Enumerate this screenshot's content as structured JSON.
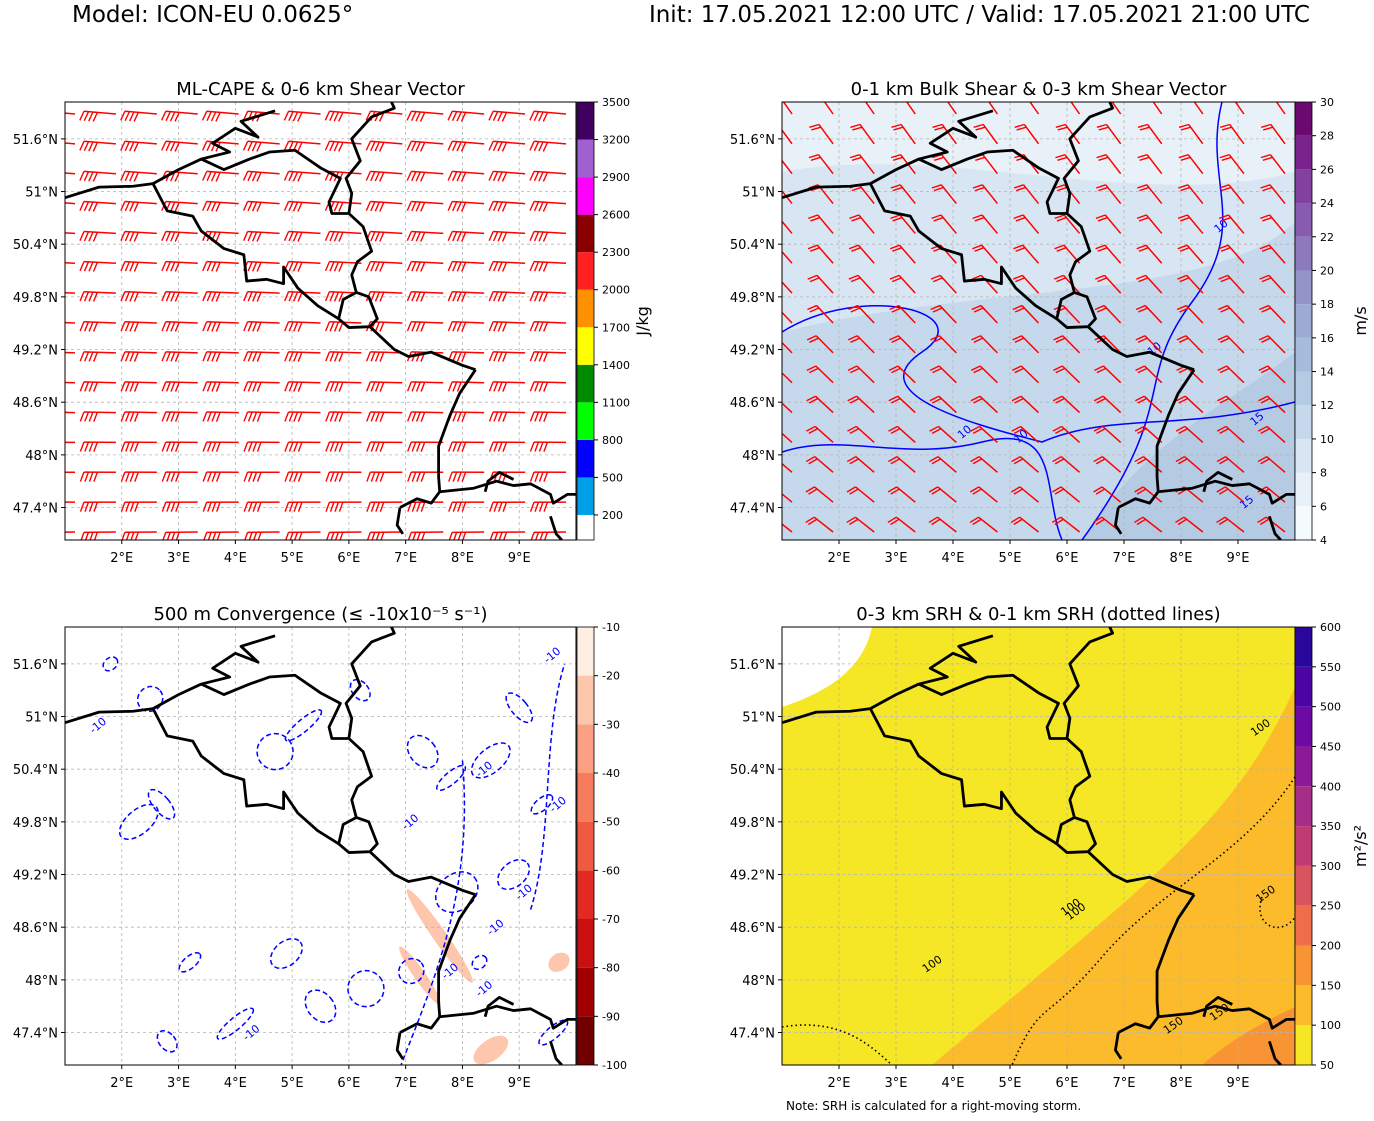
{
  "header": {
    "model": "Model: ICON-EU 0.0625°",
    "time": "Init: 17.05.2021 12:00 UTC / Valid: 17.05.2021 21:00 UTC"
  },
  "note": "Note: SRH is calculated for a right-moving storm.",
  "axes": {
    "lat_labels": [
      "51.6°N",
      "51°N",
      "50.4°N",
      "49.8°N",
      "49.2°N",
      "48.6°N",
      "48°N",
      "47.4°N"
    ],
    "lat_values": [
      51.6,
      51.0,
      50.4,
      49.8,
      49.2,
      48.6,
      48.0,
      47.4
    ],
    "lon_labels": [
      "2°E",
      "3°E",
      "4°E",
      "5°E",
      "6°E",
      "7°E",
      "8°E",
      "9°E"
    ],
    "lon_values": [
      2,
      3,
      4,
      5,
      6,
      7,
      8,
      9
    ],
    "lon_range": [
      1.0,
      10.0
    ],
    "lat_range": [
      47.03,
      52.02
    ],
    "grid": true
  },
  "panels": [
    {
      "id": "cape",
      "title": "ML-CAPE & 0-6 km Shear Vector",
      "unit": "J/kg",
      "colorbar": {
        "min": 0,
        "max": 3500,
        "ticks": [
          "200",
          "500",
          "800",
          "1100",
          "1400",
          "1700",
          "2000",
          "2300",
          "2600",
          "2900",
          "3200",
          "3500"
        ],
        "bounds": [
          0,
          200,
          500,
          800,
          1100,
          1400,
          1700,
          2000,
          2300,
          2600,
          2900,
          3200,
          3500
        ],
        "colors": [
          "#ffffff",
          "#00a0e8",
          "#0000ff",
          "#00ff00",
          "#008a00",
          "#ffff00",
          "#ff9000",
          "#ff2020",
          "#8a0000",
          "#ff00ff",
          "#a060d0",
          "#400060"
        ]
      },
      "barbs": {
        "color": "#ff0000",
        "style": "westerly-strong"
      }
    },
    {
      "id": "shear",
      "title": "0-1 km Bulk Shear & 0-3 km Shear Vector",
      "unit": "m/s",
      "colorbar": {
        "min": 4,
        "max": 30,
        "ticks": [
          "4",
          "6",
          "8",
          "10",
          "12",
          "14",
          "16",
          "18",
          "20",
          "22",
          "24",
          "26",
          "28",
          "30"
        ],
        "bounds": [
          4,
          6,
          8,
          10,
          12,
          14,
          16,
          18,
          20,
          22,
          24,
          26,
          28,
          30
        ],
        "colors": [
          "#f5fafd",
          "#e8f1f8",
          "#d7e6f2",
          "#c6d8eb",
          "#b5cae3",
          "#a7bbdb",
          "#9cabd3",
          "#9394c8",
          "#8c7abd",
          "#875cae",
          "#82409f",
          "#7a238d",
          "#6a0a70"
        ]
      },
      "contour_labels": [
        "10",
        "15"
      ],
      "contour_color": "#0000ff",
      "barbs": {
        "color": "#ff0000",
        "style": "southwesterly"
      }
    },
    {
      "id": "conv",
      "title": "500 m Convergence (≤ -10x10⁻⁵ s⁻¹)",
      "unit": "",
      "colorbar": {
        "min": -100,
        "max": -10,
        "ticks": [
          "-10",
          "-20",
          "-30",
          "-40",
          "-50",
          "-60",
          "-70",
          "-80",
          "-90",
          "-100"
        ],
        "bounds": [
          -100,
          -90,
          -80,
          -70,
          -60,
          -50,
          -40,
          -30,
          -20,
          -10
        ],
        "colors": [
          "#700000",
          "#a00000",
          "#c81010",
          "#e02a22",
          "#f05a40",
          "#f77c5e",
          "#fba083",
          "#fdc6ad",
          "#ffeee4"
        ]
      },
      "contour_labels": [
        "-10"
      ],
      "contour_color": "#0000ff"
    },
    {
      "id": "srh",
      "title": "0-3 km SRH & 0-1 km SRH (dotted lines)",
      "unit": "m²/s²",
      "colorbar": {
        "min": 50,
        "max": 600,
        "ticks": [
          "50",
          "100",
          "150",
          "200",
          "250",
          "300",
          "350",
          "400",
          "450",
          "500",
          "550",
          "600"
        ],
        "bounds": [
          50,
          100,
          150,
          200,
          250,
          300,
          350,
          400,
          450,
          500,
          550,
          600
        ],
        "colors": [
          "#f5e626",
          "#fbbb2a",
          "#f99434",
          "#ee6e4b",
          "#d8545e",
          "#c03b73",
          "#a62d88",
          "#8c1a97",
          "#6c0aa3",
          "#4c04a4",
          "#28079a"
        ]
      },
      "contour_labels": [
        "100",
        "150"
      ],
      "contour_color": "#000000"
    }
  ]
}
